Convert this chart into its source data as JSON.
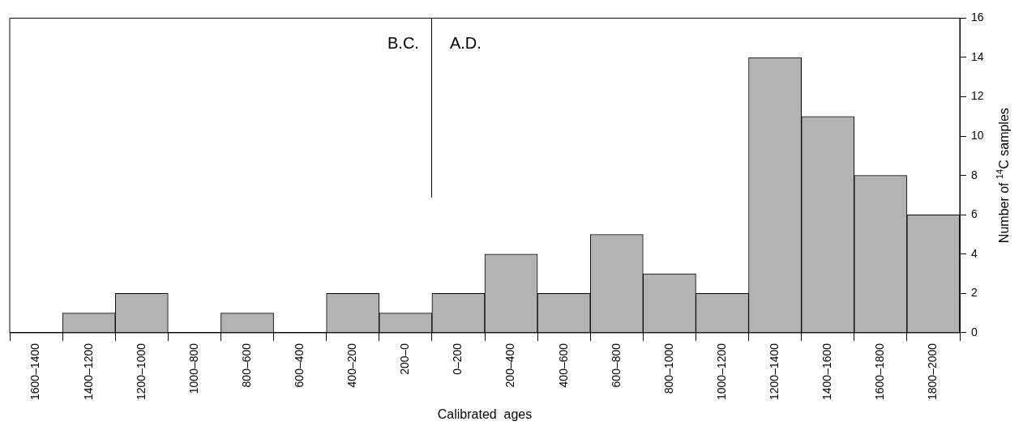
{
  "chart_data": {
    "type": "bar",
    "categories": [
      "1600–1400",
      "1400–1200",
      "1200–1000",
      "1000–800",
      "800–600",
      "600–400",
      "400–200",
      "200–0",
      "0–200",
      "200–400",
      "400–600",
      "600–800",
      "800–1000",
      "1000–1200",
      "1200–1400",
      "1400–1600",
      "1600–1800",
      "1800–2000"
    ],
    "values": [
      0,
      1,
      2,
      0,
      1,
      0,
      2,
      1,
      2,
      4,
      2,
      5,
      3,
      2,
      14,
      11,
      8,
      6
    ],
    "color": "#b3b3b3",
    "xlabel": "Calibrated  ages",
    "ylabel": "Number of $^{14}$C samples",
    "ylim": [
      0,
      16
    ],
    "yticks": [
      0,
      2,
      4,
      6,
      8,
      10,
      12,
      14,
      16
    ],
    "annotations": [
      "B.C.",
      "A.D."
    ]
  }
}
